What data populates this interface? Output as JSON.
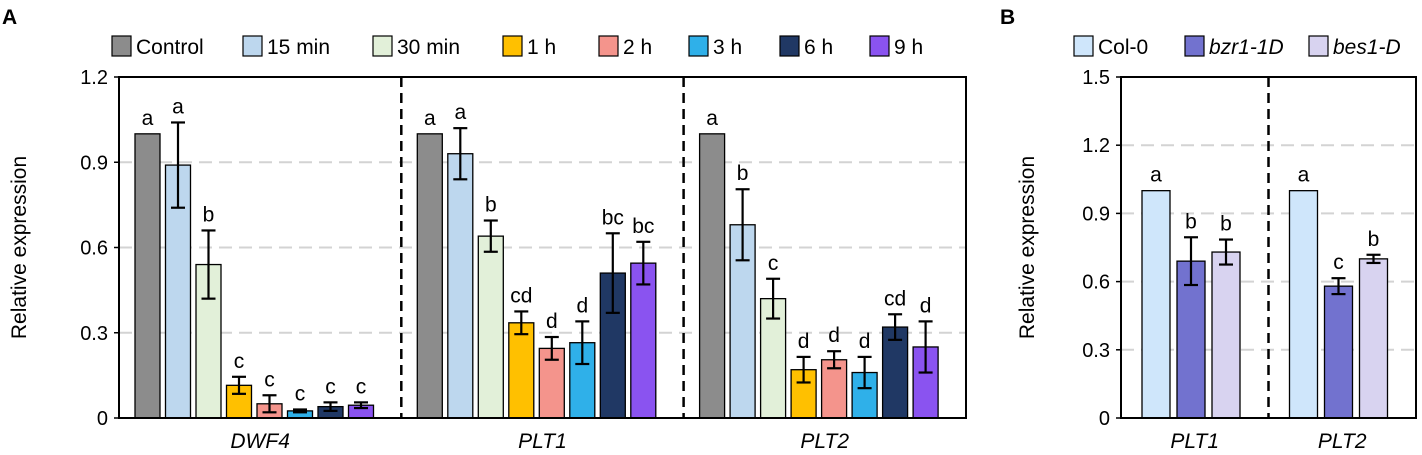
{
  "chart_data": [
    {
      "panel": "A",
      "type": "bar",
      "title": "",
      "xlabel": "",
      "ylabel": "Relative expression",
      "ylim": [
        0,
        1.2
      ],
      "yticks": [
        "0",
        "0.3",
        "0.6",
        "0.9",
        "1.2"
      ],
      "ytick_values": [
        0,
        0.3,
        0.6,
        0.9,
        1.2
      ],
      "grid": true,
      "legend_position": "top",
      "groups": [
        "DWF4",
        "PLT1",
        "PLT2"
      ],
      "series": [
        {
          "name": "Control",
          "color": "#8c8c8c",
          "values": [
            1.0,
            1.0,
            1.0
          ],
          "errors": [
            0,
            0,
            0
          ],
          "letters": [
            "a",
            "a",
            "a"
          ]
        },
        {
          "name": "15 min",
          "color": "#bdd7ee",
          "values": [
            0.89,
            0.93,
            0.68
          ],
          "errors": [
            0.15,
            0.09,
            0.125
          ],
          "letters": [
            "a",
            "a",
            "b"
          ]
        },
        {
          "name": "30 min",
          "color": "#e2f0d9",
          "values": [
            0.54,
            0.64,
            0.42
          ],
          "errors": [
            0.12,
            0.055,
            0.07
          ],
          "letters": [
            "b",
            "b",
            "c"
          ]
        },
        {
          "name": "1 h",
          "color": "#ffc000",
          "values": [
            0.115,
            0.335,
            0.17
          ],
          "errors": [
            0.03,
            0.04,
            0.045
          ],
          "letters": [
            "c",
            "cd",
            "d"
          ]
        },
        {
          "name": "2 h",
          "color": "#f4948c",
          "values": [
            0.05,
            0.245,
            0.205
          ],
          "errors": [
            0.03,
            0.04,
            0.03
          ],
          "letters": [
            "c",
            "d",
            "d"
          ]
        },
        {
          "name": "3 h",
          "color": "#2fb0e9",
          "values": [
            0.025,
            0.265,
            0.16
          ],
          "errors": [
            0.005,
            0.075,
            0.055
          ],
          "letters": [
            "c",
            "d",
            "d"
          ]
        },
        {
          "name": "6 h",
          "color": "#203864",
          "values": [
            0.04,
            0.51,
            0.32
          ],
          "errors": [
            0.015,
            0.14,
            0.045
          ],
          "letters": [
            "c",
            "bc",
            "cd"
          ]
        },
        {
          "name": "9 h",
          "color": "#8a53f0",
          "values": [
            0.045,
            0.545,
            0.25
          ],
          "errors": [
            0.01,
            0.075,
            0.09
          ],
          "letters": [
            "c",
            "bc",
            "d"
          ]
        }
      ]
    },
    {
      "panel": "B",
      "type": "bar",
      "title": "",
      "xlabel": "",
      "ylabel": "Relative expression",
      "ylim": [
        0,
        1.5
      ],
      "yticks": [
        "0",
        "0.3",
        "0.6",
        "0.9",
        "1.2",
        "1.5"
      ],
      "ytick_values": [
        0,
        0.3,
        0.6,
        0.9,
        1.2,
        1.5
      ],
      "grid": true,
      "legend_position": "top",
      "groups": [
        "PLT1",
        "PLT2"
      ],
      "series": [
        {
          "name": "Col-0",
          "italic": false,
          "color": "#cfe6fb",
          "values": [
            1.0,
            1.0
          ],
          "errors": [
            0,
            0
          ],
          "letters": [
            "a",
            "a"
          ]
        },
        {
          "name": "bzr1-1D",
          "italic": true,
          "color": "#7272cf",
          "values": [
            0.69,
            0.58
          ],
          "errors": [
            0.105,
            0.035
          ],
          "letters": [
            "b",
            "c"
          ]
        },
        {
          "name": "bes1-D",
          "italic": true,
          "color": "#d8d3f0",
          "values": [
            0.73,
            0.7
          ],
          "errors": [
            0.055,
            0.018
          ],
          "letters": [
            "b",
            "b"
          ]
        }
      ]
    }
  ]
}
